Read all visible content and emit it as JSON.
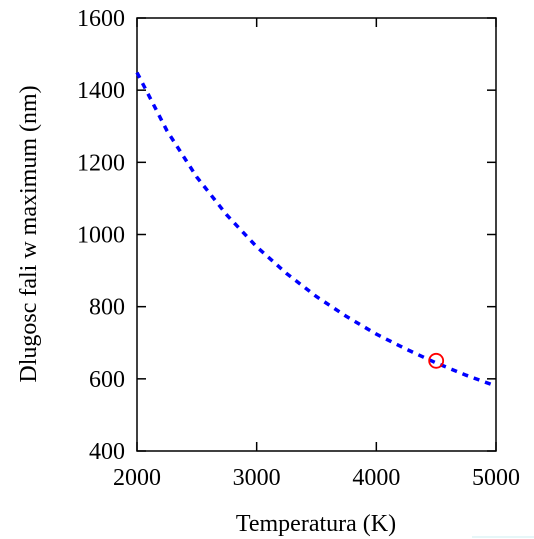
{
  "chart_data": {
    "type": "line",
    "title": "",
    "xlabel": "Temperatura (K)",
    "ylabel": "Dlugosc fali w maximum (nm)",
    "xlim": [
      2000,
      5000
    ],
    "ylim": [
      400,
      1600
    ],
    "xticks": [
      2000,
      3000,
      4000,
      5000
    ],
    "yticks": [
      400,
      600,
      800,
      1000,
      1200,
      1400,
      1600
    ],
    "grid": false,
    "legend": "none",
    "series": [
      {
        "style": "dotted",
        "color": "#0000ff",
        "x": [
          2000,
          2250,
          2500,
          2750,
          3000,
          3250,
          3500,
          3750,
          4000,
          4250,
          4500,
          4750,
          5000
        ],
        "y": [
          1449,
          1288,
          1159,
          1054,
          966,
          892,
          828,
          773,
          724,
          682,
          644,
          610,
          580
        ]
      }
    ],
    "marker": {
      "x": 4500,
      "y": 650,
      "shape": "circle",
      "color": "#ff0000"
    }
  }
}
